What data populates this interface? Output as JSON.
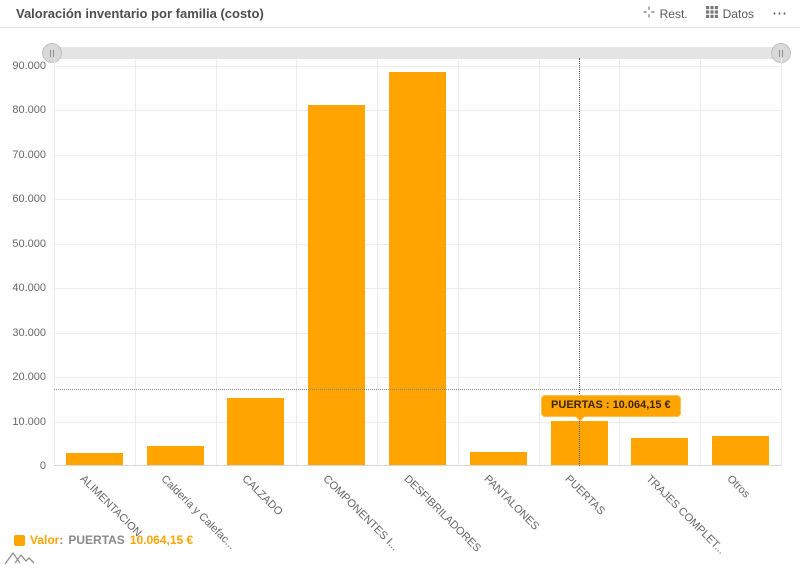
{
  "header": {
    "title": "Valoración inventario por familia (costo)",
    "reset_label": "Rest.",
    "data_label": "Datos",
    "more_label": "⋯"
  },
  "chart_data": {
    "type": "bar",
    "title": "Valoración inventario por familia (costo)",
    "categories": [
      "ALIMENTACION",
      "Caldería y Calefac...",
      "CALZADO",
      "COMPONENTES I...",
      "DESFIBRILADORES",
      "PANTALONES",
      "PUERTAS",
      "TRAJES COMPLET...",
      "Otros"
    ],
    "series": [
      {
        "name": "Valor",
        "values": [
          3000,
          4500,
          15300,
          81200,
          88700,
          3100,
          10064.15,
          6400,
          6800
        ]
      }
    ],
    "ylim": [
      0,
      90000
    ],
    "ytick_values": [
      0,
      10000,
      20000,
      30000,
      40000,
      50000,
      60000,
      70000,
      80000,
      90000
    ],
    "ytick_labels": [
      "0",
      "10.000",
      "20.000",
      "30.000",
      "40.000",
      "50.000",
      "60.000",
      "70.000",
      "80.000",
      "90.000"
    ],
    "grid": true,
    "legend_position": "bottom-left",
    "plot_line_value": 17300,
    "highlight": {
      "category": "PUERTAS",
      "category_index": 6,
      "value": 10064.15,
      "tooltip_text": "PUERTAS : 10.064,15 €"
    }
  },
  "tooltip": {
    "text": "PUERTAS : 10.064,15 €"
  },
  "legend": {
    "series_label": "Valor",
    "separator": ":",
    "category": "PUERTAS",
    "value": "10.064,15 €"
  },
  "colors": {
    "accent_orange": "#FFA400",
    "tooltip_bg": "#FFA400",
    "tooltip_border": "#ffc04d",
    "tooltip_text": "#3d2606",
    "grid_line": "#ececec",
    "muted_text": "#666666",
    "title_text": "#4d4d4d"
  }
}
